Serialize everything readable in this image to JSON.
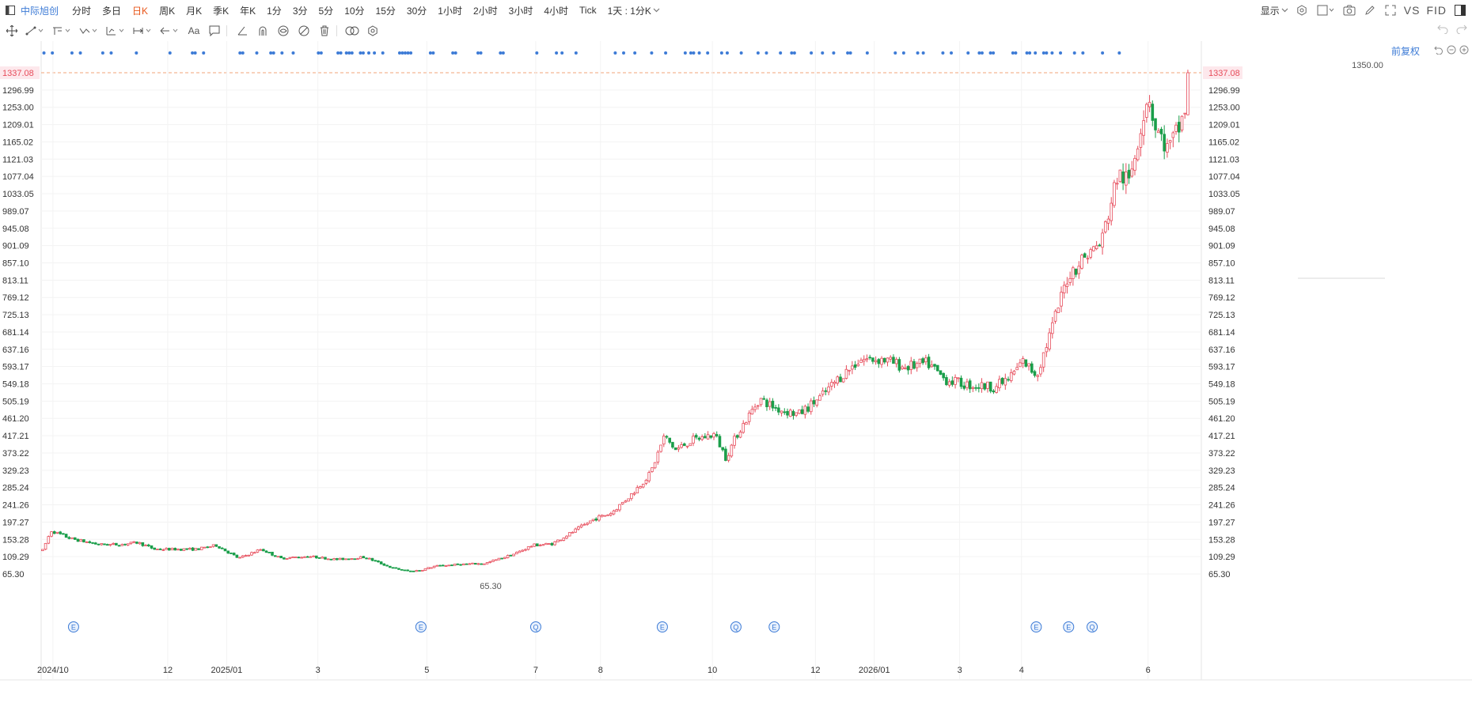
{
  "header": {
    "stock_name": "中际旭创",
    "periods": [
      {
        "label": "分时",
        "active": false
      },
      {
        "label": "多日",
        "active": false
      },
      {
        "label": "日K",
        "active": true
      },
      {
        "label": "周K",
        "active": false
      },
      {
        "label": "月K",
        "active": false
      },
      {
        "label": "季K",
        "active": false
      },
      {
        "label": "年K",
        "active": false
      },
      {
        "label": "1分",
        "active": false
      },
      {
        "label": "3分",
        "active": false
      },
      {
        "label": "5分",
        "active": false
      },
      {
        "label": "10分",
        "active": false
      },
      {
        "label": "15分",
        "active": false
      },
      {
        "label": "30分",
        "active": false
      },
      {
        "label": "1小时",
        "active": false
      },
      {
        "label": "2小时",
        "active": false
      },
      {
        "label": "3小时",
        "active": false
      },
      {
        "label": "4小时",
        "active": false
      },
      {
        "label": "Tick",
        "active": false
      }
    ],
    "custom_period": "1天 : 1分K",
    "show_label": "显示",
    "vs_label": "VS",
    "fid_label": "FID"
  },
  "chart_toolbar": {
    "text_tool": "Aa",
    "adjust_label": "前复权"
  },
  "chart_data": {
    "type": "candlestick",
    "y_ticks": [
      "1337.08",
      "1296.99",
      "1253.00",
      "1209.01",
      "1165.02",
      "1121.03",
      "1077.04",
      "1033.05",
      "989.07",
      "945.08",
      "901.09",
      "857.10",
      "813.11",
      "769.12",
      "725.13",
      "681.14",
      "637.16",
      "593.17",
      "549.18",
      "505.19",
      "461.20",
      "417.21",
      "373.22",
      "329.23",
      "285.24",
      "241.26",
      "197.27",
      "153.28",
      "109.29",
      "65.30"
    ],
    "ylim": [
      65.3,
      1337.08
    ],
    "x_ticks": [
      {
        "label": "2024/10",
        "index": 4
      },
      {
        "label": "12",
        "index": 43
      },
      {
        "label": "2025/01",
        "index": 63
      },
      {
        "label": "3",
        "index": 94
      },
      {
        "label": "5",
        "index": 131
      },
      {
        "label": "7",
        "index": 168
      },
      {
        "label": "8",
        "index": 190
      },
      {
        "label": "10",
        "index": 228
      },
      {
        "label": "12",
        "index": 263
      },
      {
        "label": "2026/01",
        "index": 283
      },
      {
        "label": "3",
        "index": 312
      },
      {
        "label": "4",
        "index": 333
      },
      {
        "label": "6",
        "index": 376
      }
    ],
    "current_price": "1337.08",
    "high_label": "1350.00",
    "low_label": "65.30",
    "up_color": "#e74c5b",
    "down_color": "#1a9e4a",
    "signal_color": "#3d7bd6",
    "event_markers": [
      {
        "letter": "E",
        "index": 11
      },
      {
        "letter": "E",
        "index": 129
      },
      {
        "letter": "Q",
        "index": 168
      },
      {
        "letter": "E",
        "index": 211
      },
      {
        "letter": "Q",
        "index": 236
      },
      {
        "letter": "E",
        "index": 249
      },
      {
        "letter": "E",
        "index": 338
      },
      {
        "letter": "E",
        "index": 349
      },
      {
        "letter": "Q",
        "index": 357
      }
    ],
    "signal_dots": [
      1,
      4,
      11,
      14,
      22,
      25,
      34,
      46,
      54,
      55,
      58,
      71,
      72,
      77,
      82,
      83,
      86,
      90,
      99,
      100,
      106,
      107,
      109,
      110,
      111,
      114,
      115,
      117,
      119,
      122,
      128,
      129,
      130,
      131,
      132,
      139,
      140,
      147,
      148,
      156,
      157,
      164,
      165,
      177,
      184,
      186,
      191,
      205,
      208,
      212,
      218,
      223,
      230,
      232,
      233,
      235,
      238,
      243,
      245,
      250,
      256,
      259,
      264,
      268,
      269,
      275,
      279,
      283,
      288,
      289,
      295,
      305,
      308,
      313,
      315,
      322,
      325,
      331,
      335,
      336,
      339,
      340,
      347,
      348,
      352,
      353,
      355,
      358,
      359,
      361,
      364,
      369,
      372,
      379,
      385
    ]
  }
}
